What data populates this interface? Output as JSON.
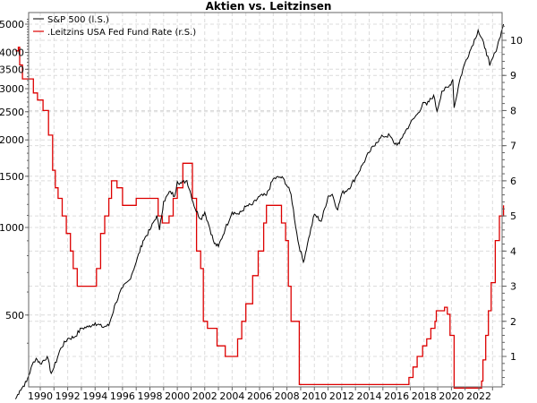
{
  "chart_data": {
    "type": "line",
    "title": "Aktien vs. Leitzinsen",
    "xlabel": "",
    "ylabel_left": "",
    "ylabel_right": "",
    "grid": true,
    "legend_position": "top-left",
    "x_range": [
      1988.2,
      2023.8
    ],
    "x_ticks": [
      "1990",
      "1992",
      "1994",
      "1996",
      "1998",
      "2000",
      "2002",
      "2004",
      "2006",
      "2008",
      "2010",
      "2012",
      "2014",
      "2016",
      "2018",
      "2020",
      "2022"
    ],
    "y_left": {
      "scale": "log",
      "range": [
        290,
        5300
      ],
      "ticks": [
        "500",
        "1000",
        "1500",
        "2000",
        "2500",
        "3000",
        "3500",
        "4000",
        "5000"
      ]
    },
    "y_right": {
      "scale": "linear",
      "range": [
        0,
        10.5
      ],
      "ticks": [
        "1",
        "2",
        "3",
        "4",
        "5",
        "6",
        "7",
        "8",
        "9",
        "10"
      ]
    },
    "series": [
      {
        "name": "S&P 500 (l.S.)",
        "axis": "left",
        "color": "#000000",
        "x": [
          1988.2,
          1988.5,
          1989.0,
          1989.5,
          1989.7,
          1990.0,
          1990.5,
          1990.8,
          1991.0,
          1991.5,
          1992.0,
          1992.5,
          1993.0,
          1993.5,
          1994.0,
          1994.5,
          1995.0,
          1995.5,
          1996.0,
          1996.5,
          1997.0,
          1997.5,
          1998.0,
          1998.5,
          1998.7,
          1999.0,
          1999.5,
          1999.8,
          2000.0,
          2000.3,
          2000.7,
          2001.0,
          2001.3,
          2001.7,
          2002.0,
          2002.3,
          2002.7,
          2003.0,
          2003.5,
          2004.0,
          2004.5,
          2005.0,
          2005.5,
          2006.0,
          2006.5,
          2007.0,
          2007.5,
          2007.8,
          2008.3,
          2008.8,
          2009.2,
          2009.5,
          2010.0,
          2010.5,
          2011.0,
          2011.3,
          2011.7,
          2012.0,
          2012.5,
          2013.0,
          2013.5,
          2014.0,
          2014.5,
          2015.0,
          2015.5,
          2015.8,
          2016.2,
          2016.5,
          2017.0,
          2017.5,
          2018.0,
          2018.2,
          2018.7,
          2018.95,
          2019.3,
          2019.8,
          2020.1,
          2020.2,
          2020.6,
          2021.0,
          2021.5,
          2021.95,
          2022.5,
          2022.8,
          2023.2,
          2023.5,
          2023.8
        ],
        "values": [
          257,
          275,
          295,
          345,
          355,
          340,
          360,
          315,
          330,
          385,
          415,
          420,
          450,
          455,
          470,
          455,
          460,
          550,
          620,
          660,
          760,
          900,
          980,
          1100,
          980,
          1230,
          1330,
          1280,
          1440,
          1420,
          1450,
          1300,
          1160,
          1070,
          1130,
          1020,
          880,
          860,
          990,
          1130,
          1110,
          1180,
          1200,
          1280,
          1290,
          1470,
          1490,
          1460,
          1300,
          900,
          760,
          880,
          1110,
          1050,
          1280,
          1300,
          1150,
          1310,
          1360,
          1480,
          1640,
          1810,
          1960,
          2060,
          2070,
          1950,
          1940,
          2090,
          2280,
          2450,
          2690,
          2640,
          2850,
          2510,
          2940,
          3040,
          3230,
          2580,
          3200,
          3700,
          4200,
          4770,
          4100,
          3600,
          4000,
          4450,
          5000
        ]
      },
      {
        "name": ".Leitzins USA Fed Fund Rate (r.S.)",
        "axis": "right",
        "color": "#dd0000",
        "x": [
          1988.2,
          1988.4,
          1988.5,
          1988.7,
          1989.2,
          1989.5,
          1989.8,
          1990.2,
          1990.6,
          1990.9,
          1991.1,
          1991.3,
          1991.6,
          1991.9,
          1992.2,
          1992.4,
          1992.7,
          1993.0,
          1993.5,
          1993.9,
          1994.1,
          1994.4,
          1994.7,
          1995.0,
          1995.2,
          1995.6,
          1996.0,
          1996.5,
          1997.0,
          1997.5,
          1998.0,
          1998.6,
          1998.9,
          1999.4,
          1999.7,
          2000.0,
          2000.4,
          2000.9,
          2001.1,
          2001.4,
          2001.7,
          2001.9,
          2002.2,
          2002.9,
          2003.5,
          2004.0,
          2004.4,
          2004.7,
          2005.0,
          2005.5,
          2005.9,
          2006.3,
          2006.5,
          2007.2,
          2007.6,
          2007.9,
          2008.1,
          2008.3,
          2008.9,
          2015.9,
          2016.9,
          2017.2,
          2017.5,
          2017.9,
          2018.2,
          2018.5,
          2018.8,
          2018.9,
          2019.5,
          2019.7,
          2019.9,
          2020.2,
          2021.3,
          2022.2,
          2022.3,
          2022.5,
          2022.7,
          2022.9,
          2023.2,
          2023.5,
          2023.8
        ],
        "values": [
          9.7,
          9.8,
          9.3,
          8.9,
          8.9,
          8.5,
          8.3,
          8.0,
          7.3,
          6.3,
          5.8,
          5.5,
          5.0,
          4.5,
          4.0,
          3.5,
          3.0,
          3.0,
          3.0,
          3.0,
          3.5,
          4.5,
          5.0,
          5.5,
          6.0,
          5.8,
          5.3,
          5.3,
          5.5,
          5.5,
          5.5,
          5.0,
          4.8,
          5.0,
          5.5,
          5.8,
          6.5,
          6.5,
          5.5,
          4.0,
          3.5,
          2.0,
          1.8,
          1.3,
          1.0,
          1.0,
          1.5,
          2.0,
          2.5,
          3.3,
          4.0,
          4.8,
          5.3,
          5.3,
          4.8,
          4.3,
          3.0,
          2.0,
          0.2,
          0.2,
          0.4,
          0.7,
          1.0,
          1.3,
          1.5,
          1.8,
          2.0,
          2.3,
          2.4,
          2.2,
          1.6,
          0.1,
          0.1,
          0.3,
          0.9,
          1.6,
          2.3,
          3.1,
          4.3,
          5.0,
          5.3
        ]
      }
    ]
  },
  "labels": {
    "title": "Aktien vs. Leitzinsen",
    "legend_sp500": "S&P 500 (l.S.)",
    "legend_fed": ".Leitzins USA Fed Fund Rate (r.S.)"
  },
  "colors": {
    "sp500": "#000000",
    "fed": "#dd0000",
    "grid": "#dcdcdc",
    "axis": "#646464"
  }
}
